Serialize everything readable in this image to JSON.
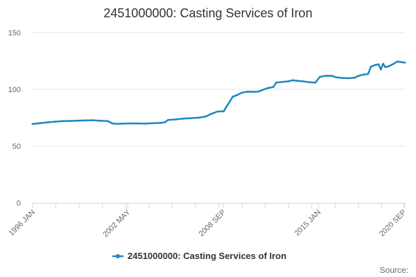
{
  "chart_data": {
    "type": "line",
    "title": "2451000000: Casting Services of Iron",
    "xlabel": "",
    "ylabel": "",
    "ylim": [
      0,
      150
    ],
    "yticks": [
      0,
      50,
      100,
      150
    ],
    "xlim": [
      1996.0,
      2020.75
    ],
    "xticks": [
      {
        "label": "1996 JAN",
        "x": 1996.0
      },
      {
        "label": "2002 MAY",
        "x": 2002.33
      },
      {
        "label": "2008 SEP",
        "x": 2008.67
      },
      {
        "label": "2015 JAN",
        "x": 2015.0
      },
      {
        "label": "2020 SEP",
        "x": 2020.67
      }
    ],
    "grid": true,
    "legend_position": "bottom-center",
    "series": [
      {
        "name": "2451000000: Casting Services of Iron",
        "color": "#1f86c2",
        "points": [
          [
            1996.0,
            69.5
          ],
          [
            1996.5,
            70.2
          ],
          [
            1997.0,
            71.0
          ],
          [
            1997.5,
            71.5
          ],
          [
            1998.0,
            72.0
          ],
          [
            1998.5,
            72.2
          ],
          [
            1999.0,
            72.4
          ],
          [
            1999.5,
            72.6
          ],
          [
            2000.0,
            72.8
          ],
          [
            2000.5,
            72.3
          ],
          [
            2001.0,
            72.0
          ],
          [
            2001.3,
            70.0
          ],
          [
            2001.6,
            69.6
          ],
          [
            2002.0,
            69.8
          ],
          [
            2002.5,
            70.0
          ],
          [
            2003.0,
            70.0
          ],
          [
            2003.5,
            69.8
          ],
          [
            2004.0,
            70.2
          ],
          [
            2004.5,
            70.5
          ],
          [
            2004.8,
            71.0
          ],
          [
            2005.0,
            73.0
          ],
          [
            2005.5,
            73.5
          ],
          [
            2006.0,
            74.2
          ],
          [
            2006.5,
            74.6
          ],
          [
            2007.0,
            75.0
          ],
          [
            2007.5,
            76.0
          ],
          [
            2007.8,
            78.0
          ],
          [
            2008.0,
            79.0
          ],
          [
            2008.3,
            80.5
          ],
          [
            2008.7,
            80.6
          ],
          [
            2008.9,
            85.0
          ],
          [
            2009.1,
            89.0
          ],
          [
            2009.3,
            93.5
          ],
          [
            2009.6,
            95.0
          ],
          [
            2009.9,
            97.0
          ],
          [
            2010.3,
            98.0
          ],
          [
            2010.7,
            97.8
          ],
          [
            2011.0,
            98.0
          ],
          [
            2011.3,
            99.5
          ],
          [
            2011.6,
            101.0
          ],
          [
            2012.0,
            102.0
          ],
          [
            2012.2,
            106.0
          ],
          [
            2012.6,
            106.5
          ],
          [
            2013.0,
            107.0
          ],
          [
            2013.3,
            108.0
          ],
          [
            2013.6,
            107.5
          ],
          [
            2014.0,
            107.0
          ],
          [
            2014.4,
            106.2
          ],
          [
            2014.8,
            106.0
          ],
          [
            2015.1,
            111.0
          ],
          [
            2015.5,
            112.0
          ],
          [
            2015.9,
            111.8
          ],
          [
            2016.2,
            110.5
          ],
          [
            2016.6,
            110.0
          ],
          [
            2017.0,
            109.8
          ],
          [
            2017.4,
            110.2
          ],
          [
            2017.7,
            112.0
          ],
          [
            2018.0,
            113.0
          ],
          [
            2018.3,
            113.5
          ],
          [
            2018.5,
            120.0
          ],
          [
            2018.8,
            121.5
          ],
          [
            2019.0,
            122.0
          ],
          [
            2019.15,
            117.5
          ],
          [
            2019.3,
            122.5
          ],
          [
            2019.45,
            119.5
          ],
          [
            2019.7,
            120.5
          ],
          [
            2020.0,
            122.5
          ],
          [
            2020.25,
            124.5
          ],
          [
            2020.5,
            124.0
          ],
          [
            2020.75,
            123.5
          ]
        ]
      }
    ],
    "source_label": "Source:"
  }
}
